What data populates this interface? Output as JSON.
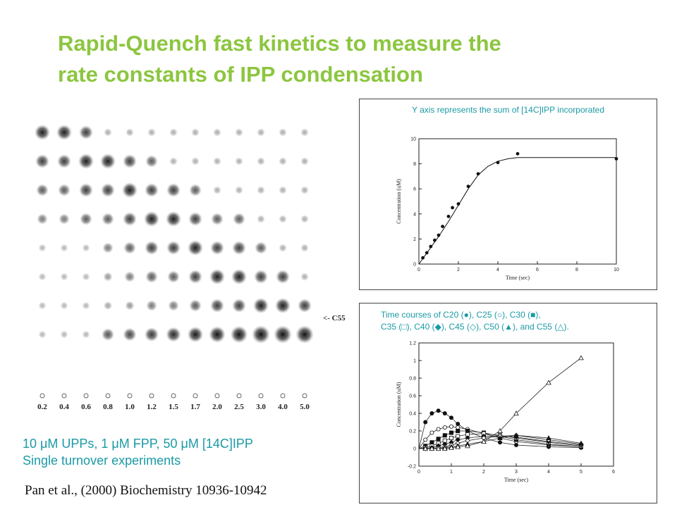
{
  "slide": {
    "title_line1": "Rapid-Quench fast kinetics to measure the",
    "title_line2": "rate constants of IPP condensation",
    "condition_line1": "10 μM UPPs, 1 μM FPP, 50 μM [14C]IPP",
    "condition_line2": "Single turnover experiments",
    "citation": "Pan et al., (2000) Biochemistry 10936-10942",
    "accent_color": "#8cc63f",
    "text_accent_color": "#1a9aa5"
  },
  "tlc": {
    "lanes": [
      "0.2",
      "0.4",
      "0.6",
      "0.8",
      "1.0",
      "1.2",
      "1.5",
      "1.7",
      "2.0",
      "2.5",
      "3.0",
      "4.0",
      "5.0"
    ],
    "product_label": "<- C55"
  },
  "chart_data": [
    {
      "type": "scatter",
      "caption": "Y axis represents the sum of [14C]IPP incorporated",
      "xlabel": "Time (sec)",
      "ylabel": "Concentration (uM)",
      "xlim": [
        0,
        10
      ],
      "ylim": [
        0,
        10
      ],
      "xticks": [
        "0",
        "2",
        "4",
        "6",
        "8",
        "10"
      ],
      "yticks": [
        "0",
        "2",
        "4",
        "6",
        "8",
        "10"
      ],
      "series": [
        {
          "x": [
            0.2,
            0.4,
            0.6,
            0.8,
            1.0,
            1.2,
            1.5,
            1.7,
            2.0,
            2.5,
            3.0,
            4.0,
            5.0,
            10.0
          ],
          "y": [
            0.5,
            0.9,
            1.4,
            1.9,
            2.3,
            3.0,
            3.8,
            4.5,
            4.8,
            6.2,
            7.2,
            8.1,
            8.8,
            8.4
          ]
        }
      ],
      "fit": {
        "x": [
          0,
          0.5,
          1,
          1.5,
          2,
          2.5,
          3,
          3.5,
          4,
          4.5,
          5,
          6,
          7,
          8,
          9,
          10
        ],
        "y": [
          0,
          1.1,
          2.2,
          3.4,
          4.7,
          6.0,
          7.1,
          7.8,
          8.2,
          8.4,
          8.5,
          8.5,
          8.5,
          8.5,
          8.5,
          8.5
        ]
      }
    },
    {
      "type": "line",
      "caption_line1": "Time courses of C20 (●), C25 (○), C30 (■),",
      "caption_line2": "C35 (□), C40 (◆), C45 (◇), C50 (▲), and C55 (△).",
      "xlabel": "Time (sec)",
      "ylabel": "Concentration (uM)",
      "xlim": [
        0,
        6
      ],
      "ylim": [
        -0.2,
        1.2
      ],
      "xticks": [
        "0",
        "1",
        "2",
        "3",
        "4",
        "5",
        "6"
      ],
      "yticks": [
        "-0.2",
        "0",
        "0.2",
        "0.4",
        "0.6",
        "0.8",
        "1",
        "1.2"
      ],
      "series": [
        {
          "name": "C20",
          "marker": "filled-circle",
          "x": [
            0.2,
            0.4,
            0.6,
            0.8,
            1.0,
            1.2,
            1.5,
            2.0,
            2.5,
            3.0,
            4.0,
            5.0
          ],
          "y": [
            0.3,
            0.4,
            0.43,
            0.4,
            0.35,
            0.28,
            0.2,
            0.12,
            0.07,
            0.04,
            0.02,
            0.01
          ]
        },
        {
          "name": "C25",
          "marker": "open-circle",
          "x": [
            0.2,
            0.4,
            0.6,
            0.8,
            1.0,
            1.2,
            1.5,
            2.0,
            2.5,
            3.0,
            4.0,
            5.0
          ],
          "y": [
            0.1,
            0.18,
            0.22,
            0.24,
            0.25,
            0.24,
            0.22,
            0.17,
            0.12,
            0.08,
            0.04,
            0.02
          ]
        },
        {
          "name": "C30",
          "marker": "filled-square",
          "x": [
            0.2,
            0.4,
            0.6,
            0.8,
            1.0,
            1.2,
            1.5,
            2.0,
            2.5,
            3.0,
            4.0,
            5.0
          ],
          "y": [
            0.03,
            0.07,
            0.11,
            0.15,
            0.18,
            0.2,
            0.2,
            0.18,
            0.14,
            0.1,
            0.05,
            0.02
          ]
        },
        {
          "name": "C35",
          "marker": "open-square",
          "x": [
            0.2,
            0.4,
            0.6,
            0.8,
            1.0,
            1.2,
            1.5,
            2.0,
            2.5,
            3.0,
            4.0,
            5.0
          ],
          "y": [
            0.01,
            0.03,
            0.06,
            0.09,
            0.12,
            0.14,
            0.16,
            0.17,
            0.15,
            0.12,
            0.07,
            0.03
          ]
        },
        {
          "name": "C40",
          "marker": "filled-diamond",
          "x": [
            0.2,
            0.4,
            0.6,
            0.8,
            1.0,
            1.2,
            1.5,
            2.0,
            2.5,
            3.0,
            4.0,
            5.0
          ],
          "y": [
            0,
            0.01,
            0.03,
            0.05,
            0.07,
            0.1,
            0.12,
            0.14,
            0.14,
            0.13,
            0.08,
            0.04
          ]
        },
        {
          "name": "C45",
          "marker": "open-diamond",
          "x": [
            0.2,
            0.4,
            0.6,
            0.8,
            1.0,
            1.2,
            1.5,
            2.0,
            2.5,
            3.0,
            4.0,
            5.0
          ],
          "y": [
            0,
            0,
            0.01,
            0.02,
            0.04,
            0.06,
            0.09,
            0.12,
            0.14,
            0.15,
            0.1,
            0.05
          ]
        },
        {
          "name": "C50",
          "marker": "filled-triangle",
          "x": [
            0.2,
            0.4,
            0.6,
            0.8,
            1.0,
            1.2,
            1.5,
            2.0,
            2.5,
            3.0,
            4.0,
            5.0
          ],
          "y": [
            0,
            0,
            0,
            0.01,
            0.02,
            0.03,
            0.05,
            0.08,
            0.12,
            0.15,
            0.12,
            0.06
          ]
        },
        {
          "name": "C55",
          "marker": "open-triangle",
          "x": [
            0.2,
            0.4,
            0.6,
            0.8,
            1.0,
            1.2,
            1.5,
            2.0,
            2.5,
            3.0,
            4.0,
            5.0
          ],
          "y": [
            0,
            0,
            0,
            0,
            0.01,
            0.02,
            0.03,
            0.08,
            0.2,
            0.4,
            0.75,
            1.03
          ]
        }
      ]
    }
  ]
}
